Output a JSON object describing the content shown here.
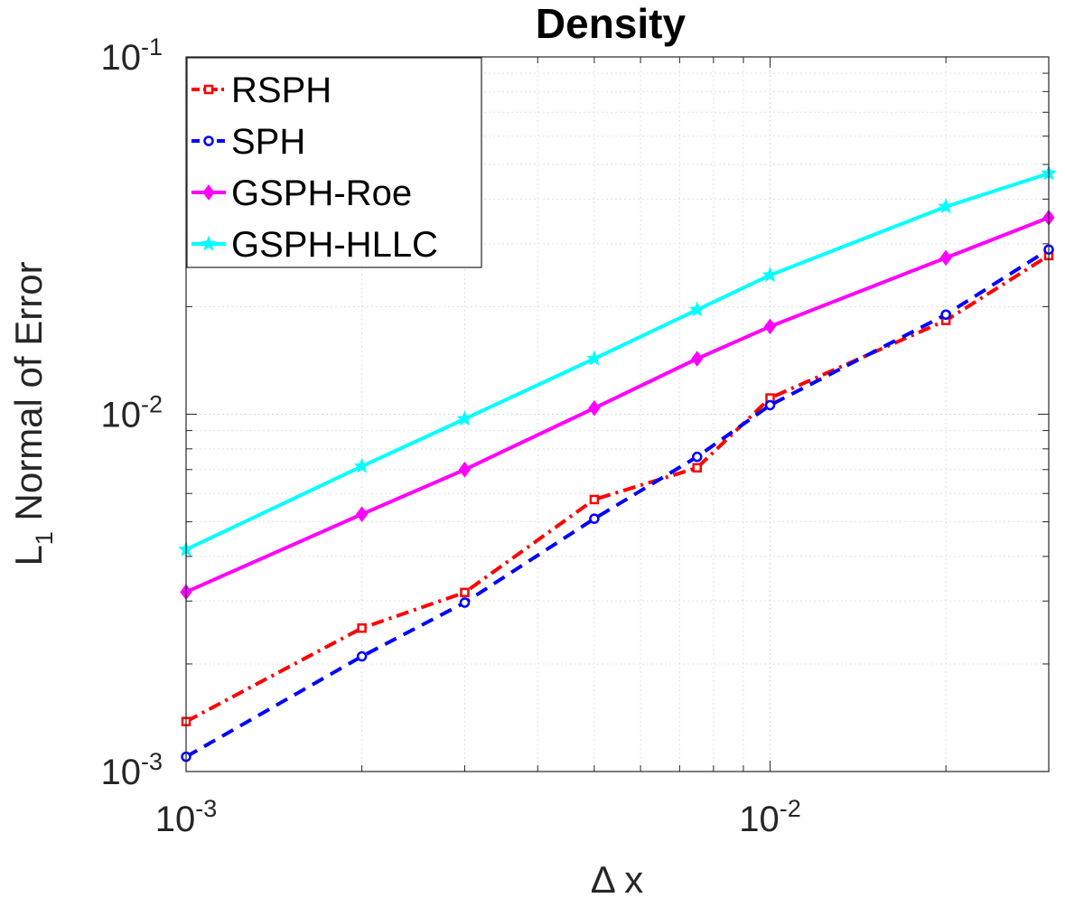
{
  "chart_data": {
    "type": "line",
    "scale": "log-log",
    "title": "Density",
    "xlabel": "Δ x",
    "ylabel_main": "L",
    "ylabel_sub": "1",
    "ylabel_rest": " Normal of Error",
    "xlim": [
      0.001,
      0.03
    ],
    "ylim": [
      0.001,
      0.1
    ],
    "grid": true,
    "legend_location": "top-left",
    "x_ticks": [
      {
        "base": "10",
        "exp": "-3",
        "value": 0.001
      },
      {
        "base": "10",
        "exp": "-2",
        "value": 0.01
      }
    ],
    "y_ticks": [
      {
        "base": "10",
        "exp": "-3",
        "value": 0.001
      },
      {
        "base": "10",
        "exp": "-2",
        "value": 0.01
      },
      {
        "base": "10",
        "exp": "-1",
        "value": 0.1
      }
    ],
    "x": [
      0.001,
      0.002,
      0.003,
      0.005,
      0.0075,
      0.01,
      0.02,
      0.03
    ],
    "series": [
      {
        "name": "RSPH",
        "color": "#ff0000",
        "marker": "square",
        "dash": "dashdot",
        "values": [
          0.00138,
          0.00252,
          0.00317,
          0.00577,
          0.00708,
          0.0111,
          0.0183,
          0.0278
        ]
      },
      {
        "name": "SPH",
        "color": "#0000ff",
        "marker": "circle",
        "dash": "dash",
        "values": [
          0.0011,
          0.0021,
          0.00297,
          0.0051,
          0.0076,
          0.0106,
          0.019,
          0.0289
        ]
      },
      {
        "name": "GSPH-Roe",
        "color": "#ff00ff",
        "marker": "diamond",
        "dash": "solid",
        "values": [
          0.00318,
          0.00525,
          0.007,
          0.0104,
          0.0143,
          0.0176,
          0.0274,
          0.0355
        ]
      },
      {
        "name": "GSPH-HLLC",
        "color": "#00ffff",
        "marker": "star",
        "dash": "solid",
        "values": [
          0.00418,
          0.00715,
          0.0097,
          0.0143,
          0.0196,
          0.0245,
          0.0381,
          0.0472
        ]
      }
    ]
  }
}
